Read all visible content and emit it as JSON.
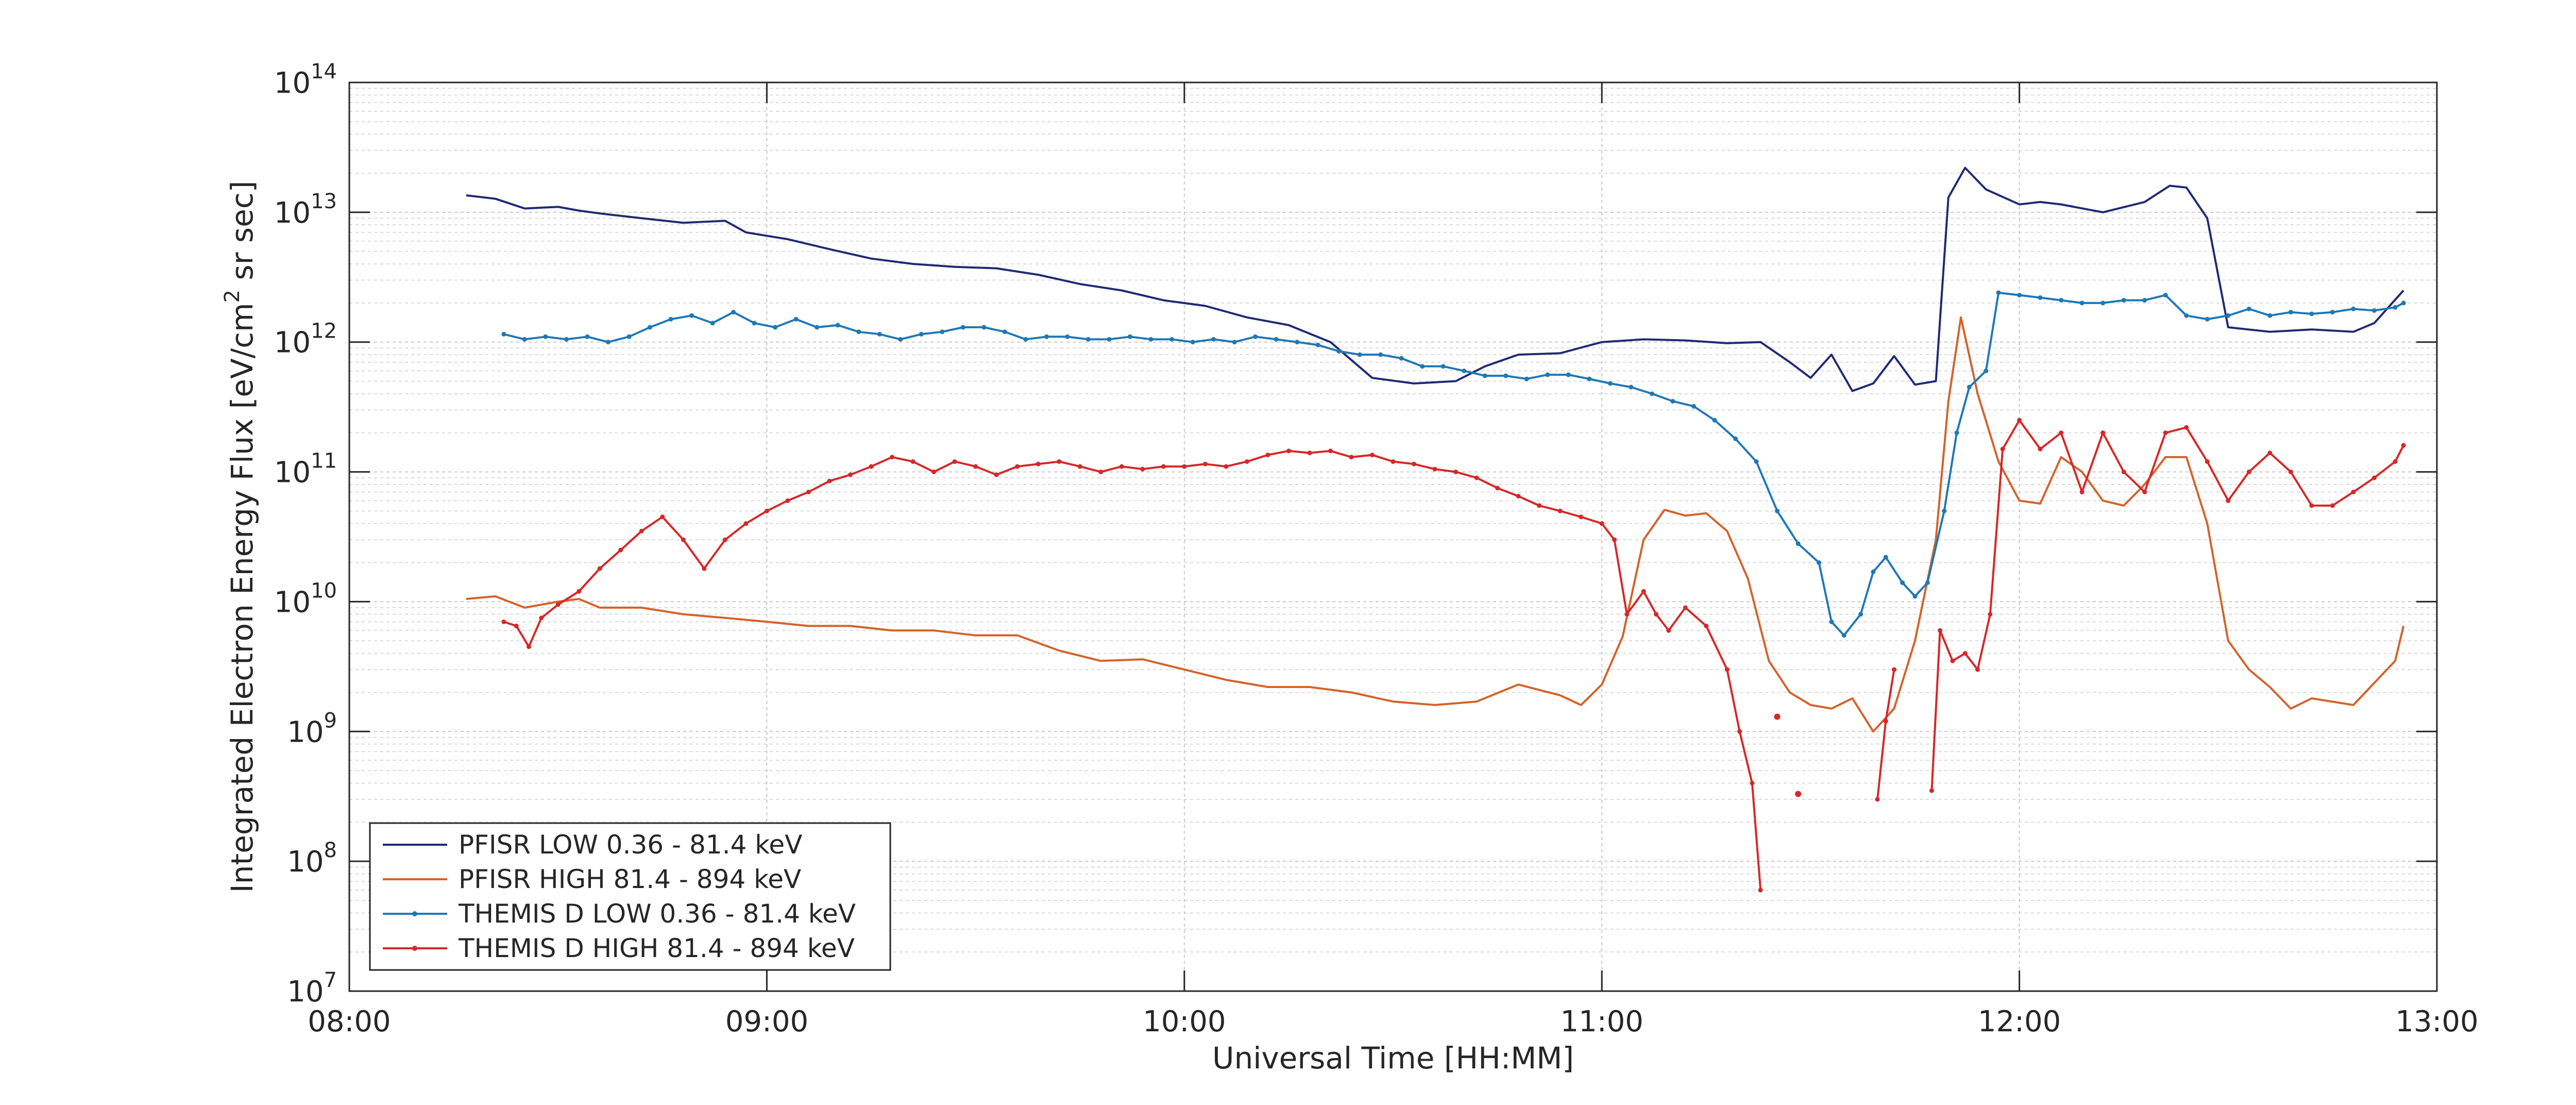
{
  "chart_data": {
    "type": "line",
    "title": "",
    "xlabel": "Universal Time [HH:MM]",
    "ylabel": "Integrated Electron Energy Flux [eV/cm² sr sec]",
    "x_unit": "hours UT",
    "xlim": [
      8,
      13
    ],
    "ylim": [
      10000000,
      100000000000000
    ],
    "y_scale": "log",
    "grid": true,
    "minor_grid": true,
    "legend_position": "bottom-left",
    "x_ticks": [
      {
        "value": 8,
        "label": "08:00"
      },
      {
        "value": 9,
        "label": "09:00"
      },
      {
        "value": 10,
        "label": "10:00"
      },
      {
        "value": 11,
        "label": "11:00"
      },
      {
        "value": 12,
        "label": "12:00"
      },
      {
        "value": 13,
        "label": "13:00"
      }
    ],
    "y_ticks": [
      {
        "exp": 7,
        "base": "10",
        "sup": "7"
      },
      {
        "exp": 8,
        "base": "10",
        "sup": "8"
      },
      {
        "exp": 9,
        "base": "10",
        "sup": "9"
      },
      {
        "exp": 10,
        "base": "10",
        "sup": "10"
      },
      {
        "exp": 11,
        "base": "10",
        "sup": "11"
      },
      {
        "exp": 12,
        "base": "10",
        "sup": "12"
      },
      {
        "exp": 13,
        "base": "10",
        "sup": "13"
      },
      {
        "exp": 14,
        "base": "10",
        "sup": "14"
      }
    ],
    "series": [
      {
        "name": "PFISR LOW 0.36 - 81.4 keV",
        "color": "#1f2a72",
        "marker": false,
        "x": [
          8.28,
          8.35,
          8.42,
          8.5,
          8.55,
          8.6,
          8.7,
          8.8,
          8.9,
          8.95,
          9.05,
          9.15,
          9.25,
          9.35,
          9.45,
          9.55,
          9.65,
          9.75,
          9.85,
          9.95,
          10.05,
          10.15,
          10.25,
          10.35,
          10.45,
          10.55,
          10.65,
          10.72,
          10.8,
          10.9,
          11.0,
          11.1,
          11.2,
          11.3,
          11.38,
          11.45,
          11.5,
          11.55,
          11.6,
          11.65,
          11.7,
          11.75,
          11.8,
          11.83,
          11.87,
          11.92,
          12.0,
          12.05,
          12.1,
          12.2,
          12.3,
          12.36,
          12.4,
          12.45,
          12.5,
          12.6,
          12.7,
          12.8,
          12.85,
          12.92
        ],
        "y": [
          13500000000000,
          12700000000000,
          10700000000000,
          11000000000000,
          10300000000000,
          9800000000000,
          9000000000000,
          8300000000000,
          8600000000000,
          7000000000000,
          6200000000000,
          5200000000000,
          4400000000000,
          4000000000000,
          3800000000000,
          3700000000000,
          3300000000000,
          2800000000000,
          2500000000000,
          2100000000000,
          1900000000000,
          1550000000000,
          1350000000000,
          1000000000000,
          530000000000,
          480000000000,
          500000000000,
          650000000000,
          800000000000,
          820000000000,
          1000000000000,
          1050000000000,
          1030000000000,
          980000000000,
          1000000000000,
          700000000000,
          530000000000,
          800000000000,
          420000000000,
          480000000000,
          780000000000,
          470000000000,
          500000000000,
          13000000000000,
          22000000000000,
          15000000000000,
          11500000000000,
          12000000000000,
          11500000000000,
          10000000000000,
          12000000000000,
          16000000000000,
          15500000000000,
          9000000000000,
          1300000000000,
          1200000000000,
          1250000000000,
          1200000000000,
          1400000000000,
          2500000000000
        ]
      },
      {
        "name": "PFISR HIGH 81.4 - 894 keV",
        "color": "#d4622a",
        "marker": false,
        "x": [
          8.28,
          8.35,
          8.42,
          8.5,
          8.55,
          8.6,
          8.7,
          8.8,
          8.9,
          9.0,
          9.1,
          9.2,
          9.3,
          9.4,
          9.5,
          9.6,
          9.7,
          9.8,
          9.9,
          10.0,
          10.1,
          10.2,
          10.3,
          10.4,
          10.5,
          10.6,
          10.7,
          10.8,
          10.9,
          10.95,
          11.0,
          11.05,
          11.1,
          11.15,
          11.2,
          11.25,
          11.3,
          11.35,
          11.4,
          11.45,
          11.5,
          11.55,
          11.6,
          11.65,
          11.7,
          11.75,
          11.8,
          11.83,
          11.86,
          11.9,
          11.95,
          12.0,
          12.05,
          12.1,
          12.15,
          12.2,
          12.25,
          12.3,
          12.35,
          12.4,
          12.45,
          12.5,
          12.55,
          12.6,
          12.65,
          12.7,
          12.8,
          12.9,
          12.92
        ],
        "y": [
          10500000000,
          11000000000,
          9000000000,
          10000000000,
          10500000000,
          9000000000,
          9000000000,
          8000000000,
          7500000000,
          7000000000,
          6500000000,
          6500000000,
          6000000000,
          6000000000,
          5500000000,
          5500000000,
          4200000000,
          3500000000,
          3600000000,
          3000000000,
          2500000000,
          2200000000,
          2200000000,
          2000000000,
          1700000000,
          1600000000,
          1700000000,
          2300000000,
          1900000000,
          1600000000,
          2300000000,
          5400000000,
          30000000000,
          51000000000,
          46000000000,
          48000000000,
          35000000000,
          15000000000,
          3500000000,
          2000000000,
          1600000000,
          1500000000,
          1800000000,
          1000000000,
          1500000000,
          5000000000,
          30000000000,
          350000000000,
          1550000000000,
          400000000000,
          120000000000,
          60000000000,
          57000000000,
          130000000000,
          100000000000,
          60000000000,
          55000000000,
          80000000000,
          130000000000,
          130000000000,
          40000000000,
          5000000000,
          3000000000,
          2200000000,
          1500000000,
          1800000000,
          1600000000,
          3500000000,
          6500000000
        ]
      },
      {
        "name": "THEMIS D LOW 0.36 - 81.4 keV",
        "color": "#1f78b4",
        "marker": true,
        "x": [
          8.37,
          8.42,
          8.47,
          8.52,
          8.57,
          8.62,
          8.67,
          8.72,
          8.77,
          8.82,
          8.87,
          8.92,
          8.97,
          9.02,
          9.07,
          9.12,
          9.17,
          9.22,
          9.27,
          9.32,
          9.37,
          9.42,
          9.47,
          9.52,
          9.57,
          9.62,
          9.67,
          9.72,
          9.77,
          9.82,
          9.87,
          9.92,
          9.97,
          10.02,
          10.07,
          10.12,
          10.17,
          10.22,
          10.27,
          10.32,
          10.37,
          10.42,
          10.47,
          10.52,
          10.57,
          10.62,
          10.67,
          10.72,
          10.77,
          10.82,
          10.87,
          10.92,
          10.97,
          11.02,
          11.07,
          11.12,
          11.17,
          11.22,
          11.27,
          11.32,
          11.37,
          11.42,
          11.47,
          11.52,
          11.55,
          11.58,
          11.62,
          11.65,
          11.68,
          11.72,
          11.75,
          11.78,
          11.82,
          11.85,
          11.88,
          11.92,
          11.95,
          12.0,
          12.05,
          12.1,
          12.15,
          12.2,
          12.25,
          12.3,
          12.35,
          12.4,
          12.45,
          12.5,
          12.55,
          12.6,
          12.65,
          12.7,
          12.75,
          12.8,
          12.85,
          12.9,
          12.92
        ],
        "y": [
          1150000000000,
          1050000000000,
          1100000000000,
          1050000000000,
          1100000000000,
          1000000000000,
          1100000000000,
          1300000000000,
          1500000000000,
          1600000000000,
          1400000000000,
          1700000000000,
          1400000000000,
          1300000000000,
          1500000000000,
          1300000000000,
          1350000000000,
          1200000000000,
          1150000000000,
          1050000000000,
          1150000000000,
          1200000000000,
          1300000000000,
          1300000000000,
          1200000000000,
          1050000000000,
          1100000000000,
          1100000000000,
          1050000000000,
          1050000000000,
          1100000000000,
          1050000000000,
          1050000000000,
          1000000000000,
          1050000000000,
          1000000000000,
          1100000000000,
          1050000000000,
          1000000000000,
          950000000000,
          850000000000,
          800000000000,
          800000000000,
          750000000000,
          650000000000,
          650000000000,
          600000000000,
          550000000000,
          550000000000,
          520000000000,
          560000000000,
          560000000000,
          520000000000,
          480000000000,
          450000000000,
          400000000000,
          350000000000,
          320000000000,
          250000000000,
          180000000000,
          120000000000,
          50000000000,
          28000000000,
          20000000000,
          7000000000,
          5500000000,
          8000000000,
          17000000000,
          22000000000,
          14000000000,
          11000000000,
          14000000000,
          50000000000,
          200000000000,
          450000000000,
          600000000000,
          2400000000000,
          2300000000000,
          2200000000000,
          2100000000000,
          2000000000000,
          2000000000000,
          2100000000000,
          2100000000000,
          2300000000000,
          1600000000000,
          1500000000000,
          1600000000000,
          1800000000000,
          1600000000000,
          1700000000000,
          1650000000000,
          1700000000000,
          1800000000000,
          1750000000000,
          1850000000000,
          2000000000000
        ]
      },
      {
        "name": "THEMIS D HIGH 81.4 - 894 keV",
        "color": "#d62728",
        "marker": true,
        "x": [
          8.37,
          8.4,
          8.43,
          8.46,
          8.5,
          8.55,
          8.6,
          8.65,
          8.7,
          8.75,
          8.8,
          8.85,
          8.9,
          8.95,
          9.0,
          9.05,
          9.1,
          9.15,
          9.2,
          9.25,
          9.3,
          9.35,
          9.4,
          9.45,
          9.5,
          9.55,
          9.6,
          9.65,
          9.7,
          9.75,
          9.8,
          9.85,
          9.9,
          9.95,
          10.0,
          10.05,
          10.1,
          10.15,
          10.2,
          10.25,
          10.3,
          10.35,
          10.4,
          10.45,
          10.5,
          10.55,
          10.6,
          10.65,
          10.7,
          10.75,
          10.8,
          10.85,
          10.9,
          10.95,
          11.0,
          11.03,
          11.06,
          11.1,
          11.13,
          11.16,
          11.2,
          11.25,
          11.3,
          11.33,
          11.36,
          11.38,
          11.42,
          11.48,
          11.66,
          11.68,
          11.7,
          11.72,
          11.79,
          11.81,
          11.84,
          11.87,
          11.9,
          11.93,
          11.96,
          12.0,
          12.05,
          12.1,
          12.15,
          12.2,
          12.25,
          12.3,
          12.35,
          12.4,
          12.45,
          12.5,
          12.55,
          12.6,
          12.65,
          12.7,
          12.75,
          12.8,
          12.85,
          12.9,
          12.92
        ],
        "y": [
          7000000000,
          6500000000,
          4500000000,
          7500000000,
          9500000000,
          12000000000,
          18000000000,
          25000000000,
          35000000000,
          45000000000,
          30000000000,
          18000000000,
          30000000000,
          40000000000,
          50000000000,
          60000000000,
          70000000000,
          85000000000,
          95000000000,
          110000000000,
          130000000000,
          120000000000,
          100000000000,
          120000000000,
          110000000000,
          95000000000,
          110000000000,
          115000000000,
          120000000000,
          110000000000,
          100000000000,
          110000000000,
          105000000000,
          110000000000,
          110000000000,
          115000000000,
          110000000000,
          120000000000,
          135000000000,
          145000000000,
          140000000000,
          145000000000,
          130000000000,
          135000000000,
          120000000000,
          115000000000,
          105000000000,
          100000000000,
          90000000000,
          75000000000,
          65000000000,
          55000000000,
          50000000000,
          45000000000,
          40000000000,
          30000000000,
          8000000000,
          12000000000,
          8000000000,
          6000000000,
          9000000000,
          6500000000,
          3000000000,
          1000000000,
          400000000,
          60000000,
          null,
          null,
          300000000,
          1200000000,
          3000000000,
          null,
          350000000,
          6000000000,
          3500000000,
          4000000000,
          3000000000,
          8000000000,
          150000000000,
          250000000000,
          150000000000,
          200000000000,
          70000000000,
          200000000000,
          100000000000,
          70000000000,
          200000000000,
          220000000000,
          120000000000,
          60000000000,
          100000000000,
          140000000000,
          100000000000,
          55000000000,
          55000000000,
          70000000000,
          90000000000,
          120000000000,
          160000000000
        ]
      }
    ],
    "isolated_points": [
      {
        "series": 3,
        "x": 11.42,
        "y": 1300000000
      },
      {
        "series": 3,
        "x": 11.47,
        "y": 330000000
      }
    ]
  }
}
